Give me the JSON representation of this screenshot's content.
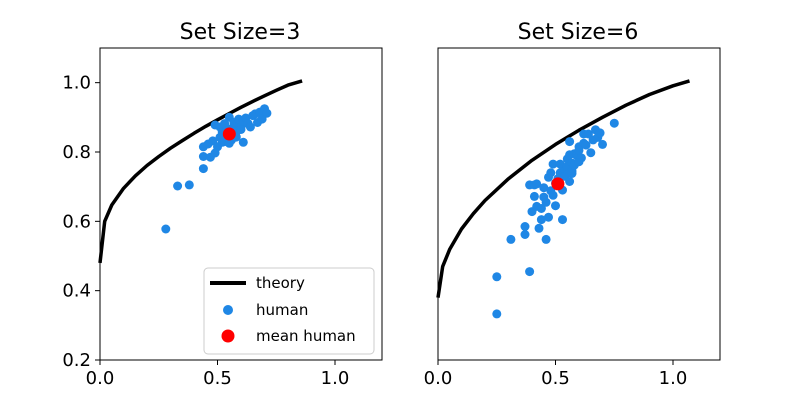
{
  "chart_data": [
    {
      "type": "scatter",
      "title": "Set Size=3",
      "xlabel": "",
      "ylabel": "",
      "xlim": [
        0.0,
        1.2
      ],
      "ylim": [
        0.2,
        1.1
      ],
      "xticks": [
        "0.0",
        "0.5",
        "1.0"
      ],
      "yticks": [
        "0.2",
        "0.4",
        "0.6",
        "0.8",
        "1.0"
      ],
      "y_tick_values": [
        0.2,
        0.4,
        0.6,
        0.8,
        1.0
      ],
      "grid": false,
      "legend": {
        "placement": "lower right",
        "entries": [
          "theory",
          "human",
          "mean human"
        ]
      },
      "series": [
        {
          "name": "theory",
          "kind": "line",
          "color": "#000000",
          "x": [
            0.0,
            0.02,
            0.05,
            0.1,
            0.15,
            0.2,
            0.25,
            0.3,
            0.35,
            0.4,
            0.45,
            0.5,
            0.55,
            0.6,
            0.65,
            0.7,
            0.75,
            0.8,
            0.86
          ],
          "y": [
            0.48,
            0.6,
            0.647,
            0.695,
            0.731,
            0.761,
            0.787,
            0.811,
            0.833,
            0.854,
            0.874,
            0.893,
            0.911,
            0.929,
            0.946,
            0.962,
            0.978,
            0.993,
            1.005
          ]
        },
        {
          "name": "human",
          "kind": "scatter",
          "color": "#1f87e5",
          "points": [
            [
              0.28,
              0.578
            ],
            [
              0.33,
              0.702
            ],
            [
              0.38,
              0.705
            ],
            [
              0.44,
              0.752
            ],
            [
              0.44,
              0.787
            ],
            [
              0.44,
              0.815
            ],
            [
              0.46,
              0.823
            ],
            [
              0.47,
              0.785
            ],
            [
              0.48,
              0.832
            ],
            [
              0.49,
              0.878
            ],
            [
              0.49,
              0.797
            ],
            [
              0.5,
              0.815
            ],
            [
              0.51,
              0.842
            ],
            [
              0.51,
              0.872
            ],
            [
              0.52,
              0.828
            ],
            [
              0.52,
              0.858
            ],
            [
              0.53,
              0.882
            ],
            [
              0.53,
              0.83
            ],
            [
              0.54,
              0.868
            ],
            [
              0.55,
              0.848
            ],
            [
              0.55,
              0.9
            ],
            [
              0.56,
              0.862
            ],
            [
              0.56,
              0.835
            ],
            [
              0.57,
              0.876
            ],
            [
              0.57,
              0.885
            ],
            [
              0.58,
              0.858
            ],
            [
              0.58,
              0.843
            ],
            [
              0.59,
              0.895
            ],
            [
              0.6,
              0.873
            ],
            [
              0.6,
              0.865
            ],
            [
              0.61,
              0.828
            ],
            [
              0.61,
              0.888
            ],
            [
              0.62,
              0.898
            ],
            [
              0.63,
              0.882
            ],
            [
              0.64,
              0.872
            ],
            [
              0.65,
              0.905
            ],
            [
              0.66,
              0.91
            ],
            [
              0.67,
              0.885
            ],
            [
              0.68,
              0.915
            ],
            [
              0.69,
              0.895
            ],
            [
              0.7,
              0.925
            ],
            [
              0.71,
              0.912
            ],
            [
              0.55,
              0.825
            ]
          ]
        },
        {
          "name": "mean human",
          "kind": "scatter",
          "color": "#ff0000",
          "points": [
            [
              0.55,
              0.852
            ]
          ]
        }
      ]
    },
    {
      "type": "scatter",
      "title": "Set Size=6",
      "xlabel": "",
      "ylabel": "",
      "xlim": [
        0.0,
        1.2
      ],
      "ylim": [
        0.2,
        1.1
      ],
      "xticks": [
        "0.0",
        "0.5",
        "1.0"
      ],
      "yticks": [],
      "grid": false,
      "series": [
        {
          "name": "theory",
          "kind": "line",
          "color": "#000000",
          "x": [
            0.0,
            0.02,
            0.05,
            0.1,
            0.15,
            0.2,
            0.3,
            0.4,
            0.5,
            0.6,
            0.7,
            0.8,
            0.9,
            1.0,
            1.07
          ],
          "y": [
            0.38,
            0.47,
            0.52,
            0.578,
            0.622,
            0.66,
            0.723,
            0.776,
            0.822,
            0.863,
            0.9,
            0.935,
            0.966,
            0.991,
            1.005
          ]
        },
        {
          "name": "human",
          "kind": "scatter",
          "color": "#1f87e5",
          "points": [
            [
              0.25,
              0.333
            ],
            [
              0.25,
              0.44
            ],
            [
              0.31,
              0.548
            ],
            [
              0.37,
              0.585
            ],
            [
              0.37,
              0.562
            ],
            [
              0.39,
              0.455
            ],
            [
              0.39,
              0.705
            ],
            [
              0.4,
              0.628
            ],
            [
              0.41,
              0.705
            ],
            [
              0.41,
              0.672
            ],
            [
              0.42,
              0.643
            ],
            [
              0.42,
              0.708
            ],
            [
              0.43,
              0.58
            ],
            [
              0.44,
              0.637
            ],
            [
              0.44,
              0.605
            ],
            [
              0.45,
              0.67
            ],
            [
              0.45,
              0.697
            ],
            [
              0.46,
              0.655
            ],
            [
              0.46,
              0.548
            ],
            [
              0.47,
              0.727
            ],
            [
              0.47,
              0.612
            ],
            [
              0.48,
              0.74
            ],
            [
              0.48,
              0.688
            ],
            [
              0.49,
              0.765
            ],
            [
              0.49,
              0.675
            ],
            [
              0.5,
              0.71
            ],
            [
              0.5,
              0.645
            ],
            [
              0.51,
              0.723
            ],
            [
              0.52,
              0.765
            ],
            [
              0.52,
              0.74
            ],
            [
              0.53,
              0.69
            ],
            [
              0.53,
              0.605
            ],
            [
              0.54,
              0.748
            ],
            [
              0.54,
              0.73
            ],
            [
              0.55,
              0.78
            ],
            [
              0.55,
              0.758
            ],
            [
              0.56,
              0.715
            ],
            [
              0.56,
              0.792
            ],
            [
              0.57,
              0.745
            ],
            [
              0.57,
              0.768
            ],
            [
              0.58,
              0.762
            ],
            [
              0.58,
              0.795
            ],
            [
              0.59,
              0.79
            ],
            [
              0.6,
              0.815
            ],
            [
              0.6,
              0.772
            ],
            [
              0.61,
              0.783
            ],
            [
              0.62,
              0.825
            ],
            [
              0.62,
              0.852
            ],
            [
              0.63,
              0.82
            ],
            [
              0.64,
              0.852
            ],
            [
              0.65,
              0.798
            ],
            [
              0.66,
              0.835
            ],
            [
              0.67,
              0.864
            ],
            [
              0.68,
              0.842
            ],
            [
              0.69,
              0.855
            ],
            [
              0.7,
              0.822
            ],
            [
              0.75,
              0.883
            ],
            [
              0.6,
              0.805
            ],
            [
              0.57,
              0.738
            ],
            [
              0.56,
              0.83
            ]
          ]
        },
        {
          "name": "mean human",
          "kind": "scatter",
          "color": "#ff0000",
          "points": [
            [
              0.51,
              0.708
            ]
          ]
        }
      ]
    }
  ]
}
